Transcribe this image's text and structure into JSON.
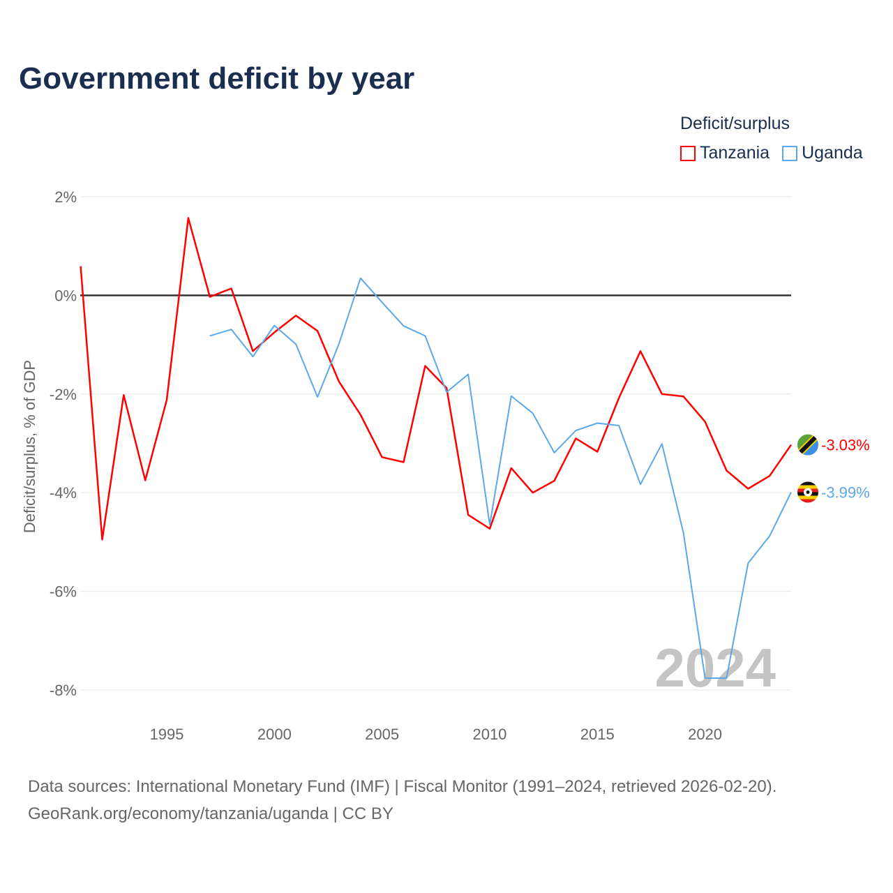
{
  "chart_data": {
    "type": "line",
    "title": "Government deficit by year",
    "xlabel": "",
    "ylabel": "Deficit/surplus, % of GDP",
    "xlim": [
      1991,
      2024
    ],
    "ylim": [
      -8,
      2
    ],
    "x_ticks": [
      1995,
      2000,
      2005,
      2010,
      2015,
      2020
    ],
    "y_ticks": [
      2,
      0,
      -2,
      -4,
      -6,
      -8
    ],
    "y_tick_labels": [
      "2%",
      "0%",
      "-2%",
      "-4%",
      "-6%",
      "-8%"
    ],
    "legend_title": "Deficit/surplus",
    "legend_position": "top-right",
    "watermark_year": "2024",
    "series": [
      {
        "name": "Tanzania",
        "color": "#ff0000",
        "end_label": "-3.03%",
        "x_start": 1991,
        "values": [
          0.59,
          -4.95,
          -2.02,
          -3.75,
          -2.12,
          1.57,
          -0.03,
          0.14,
          -1.13,
          -0.75,
          -0.41,
          -0.72,
          -1.75,
          -2.42,
          -3.28,
          -3.38,
          -1.43,
          -1.88,
          -4.45,
          -4.73,
          -3.5,
          -4.0,
          -3.76,
          -2.9,
          -3.17,
          -2.08,
          -1.13,
          -2.0,
          -2.05,
          -2.56,
          -3.55,
          -3.92,
          -3.66,
          -3.03
        ]
      },
      {
        "name": "Uganda",
        "color": "#5aa7ea",
        "end_label": "-3.99%",
        "x_start": 1997,
        "values": [
          -0.82,
          -0.69,
          -1.24,
          -0.61,
          -0.99,
          -2.06,
          -0.98,
          0.35,
          -0.14,
          -0.62,
          -0.82,
          -1.96,
          -1.6,
          -4.65,
          -2.04,
          -2.39,
          -3.19,
          -2.74,
          -2.59,
          -2.64,
          -3.83,
          -3.01,
          -4.82,
          -7.76,
          -7.76,
          -5.43,
          -4.88,
          -3.99
        ]
      }
    ]
  },
  "footer": {
    "line1": "Data sources: International Monetary Fund (IMF) | Fiscal Monitor (1991–2024, retrieved 2026-02-20).",
    "line2": "GeoRank.org/economy/tanzania/uganda | CC BY"
  }
}
